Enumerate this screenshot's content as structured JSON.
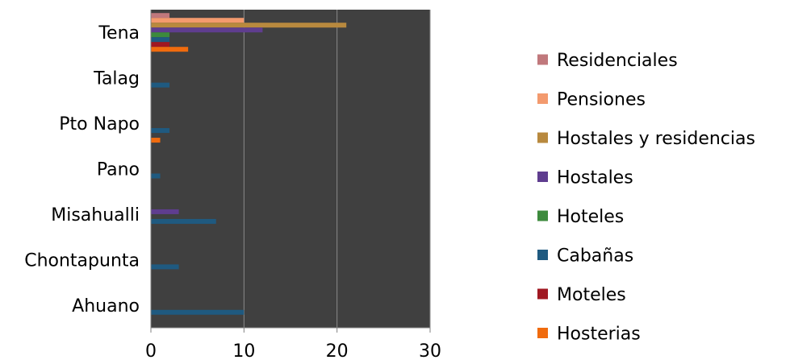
{
  "chart_data": {
    "type": "bar",
    "orientation": "horizontal",
    "title": "",
    "xlabel": "",
    "ylabel": "",
    "categories": [
      "Ahuano",
      "Chontapunta",
      "Misahualli",
      "Pano",
      "Pto Napo",
      "Talag",
      "Tena"
    ],
    "xlim": [
      0,
      30
    ],
    "x_ticks": [
      0,
      10,
      20,
      30
    ],
    "grid": "vertical-major",
    "plot_background": "#404040",
    "legend_position": "right",
    "series": [
      {
        "name": "Residenciales",
        "color": "#C0787C",
        "values": [
          0,
          0,
          0,
          0,
          0,
          0,
          2
        ]
      },
      {
        "name": "Pensiones",
        "color": "#F39A6E",
        "values": [
          0,
          0,
          0,
          0,
          0,
          0,
          10
        ]
      },
      {
        "name": "Hostales y residencias",
        "color": "#B8893E",
        "values": [
          0,
          0,
          0,
          0,
          0,
          0,
          21
        ]
      },
      {
        "name": "Hostales",
        "color": "#5F3D8F",
        "values": [
          0,
          0,
          3,
          0,
          0,
          0,
          12
        ]
      },
      {
        "name": "Hoteles",
        "color": "#3D8A3D",
        "values": [
          0,
          0,
          0,
          0,
          0,
          0,
          2
        ]
      },
      {
        "name": "Cabañas",
        "color": "#1F5A80",
        "values": [
          10,
          3,
          7,
          1,
          2,
          2,
          2
        ]
      },
      {
        "name": "Moteles",
        "color": "#A01822",
        "values": [
          0,
          0,
          0,
          0,
          0,
          0,
          2
        ]
      },
      {
        "name": "Hosterias",
        "color": "#F06B0E",
        "values": [
          0,
          0,
          0,
          0,
          1,
          0,
          4
        ]
      }
    ]
  }
}
